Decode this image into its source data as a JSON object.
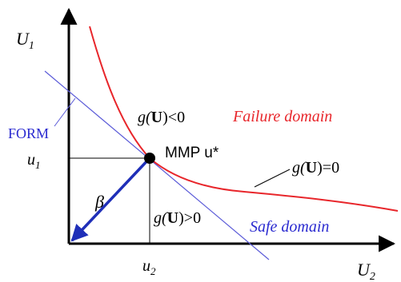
{
  "axes": {
    "vertical_label_main": "U",
    "vertical_label_sub": "1",
    "horizontal_label_main": "U",
    "horizontal_label_sub": "2"
  },
  "ticks": {
    "u1_main": "u",
    "u1_sub": "1",
    "u2_main": "u",
    "u2_sub": "2"
  },
  "labels": {
    "form": "FORM",
    "mmp": "MMP u*",
    "beta": "β",
    "failure_domain": "Failure domain",
    "safe_domain": "Safe domain",
    "g_negative": {
      "prefix": "g(",
      "bold": "U",
      "suffix": ")<0"
    },
    "g_zero": {
      "prefix": "g(",
      "bold": "U",
      "suffix": ")=0"
    },
    "g_positive": {
      "prefix": "g(",
      "bold": "U",
      "suffix": ")>0"
    }
  },
  "colors": {
    "axes": "#000000",
    "limit_state_curve": "#e8262b",
    "form_line": "#5b5bd8",
    "beta_vector": "#1f2fb8",
    "failure_text": "#e8262b",
    "safe_text": "#2b2bd0",
    "form_text": "#2b2bd0"
  }
}
